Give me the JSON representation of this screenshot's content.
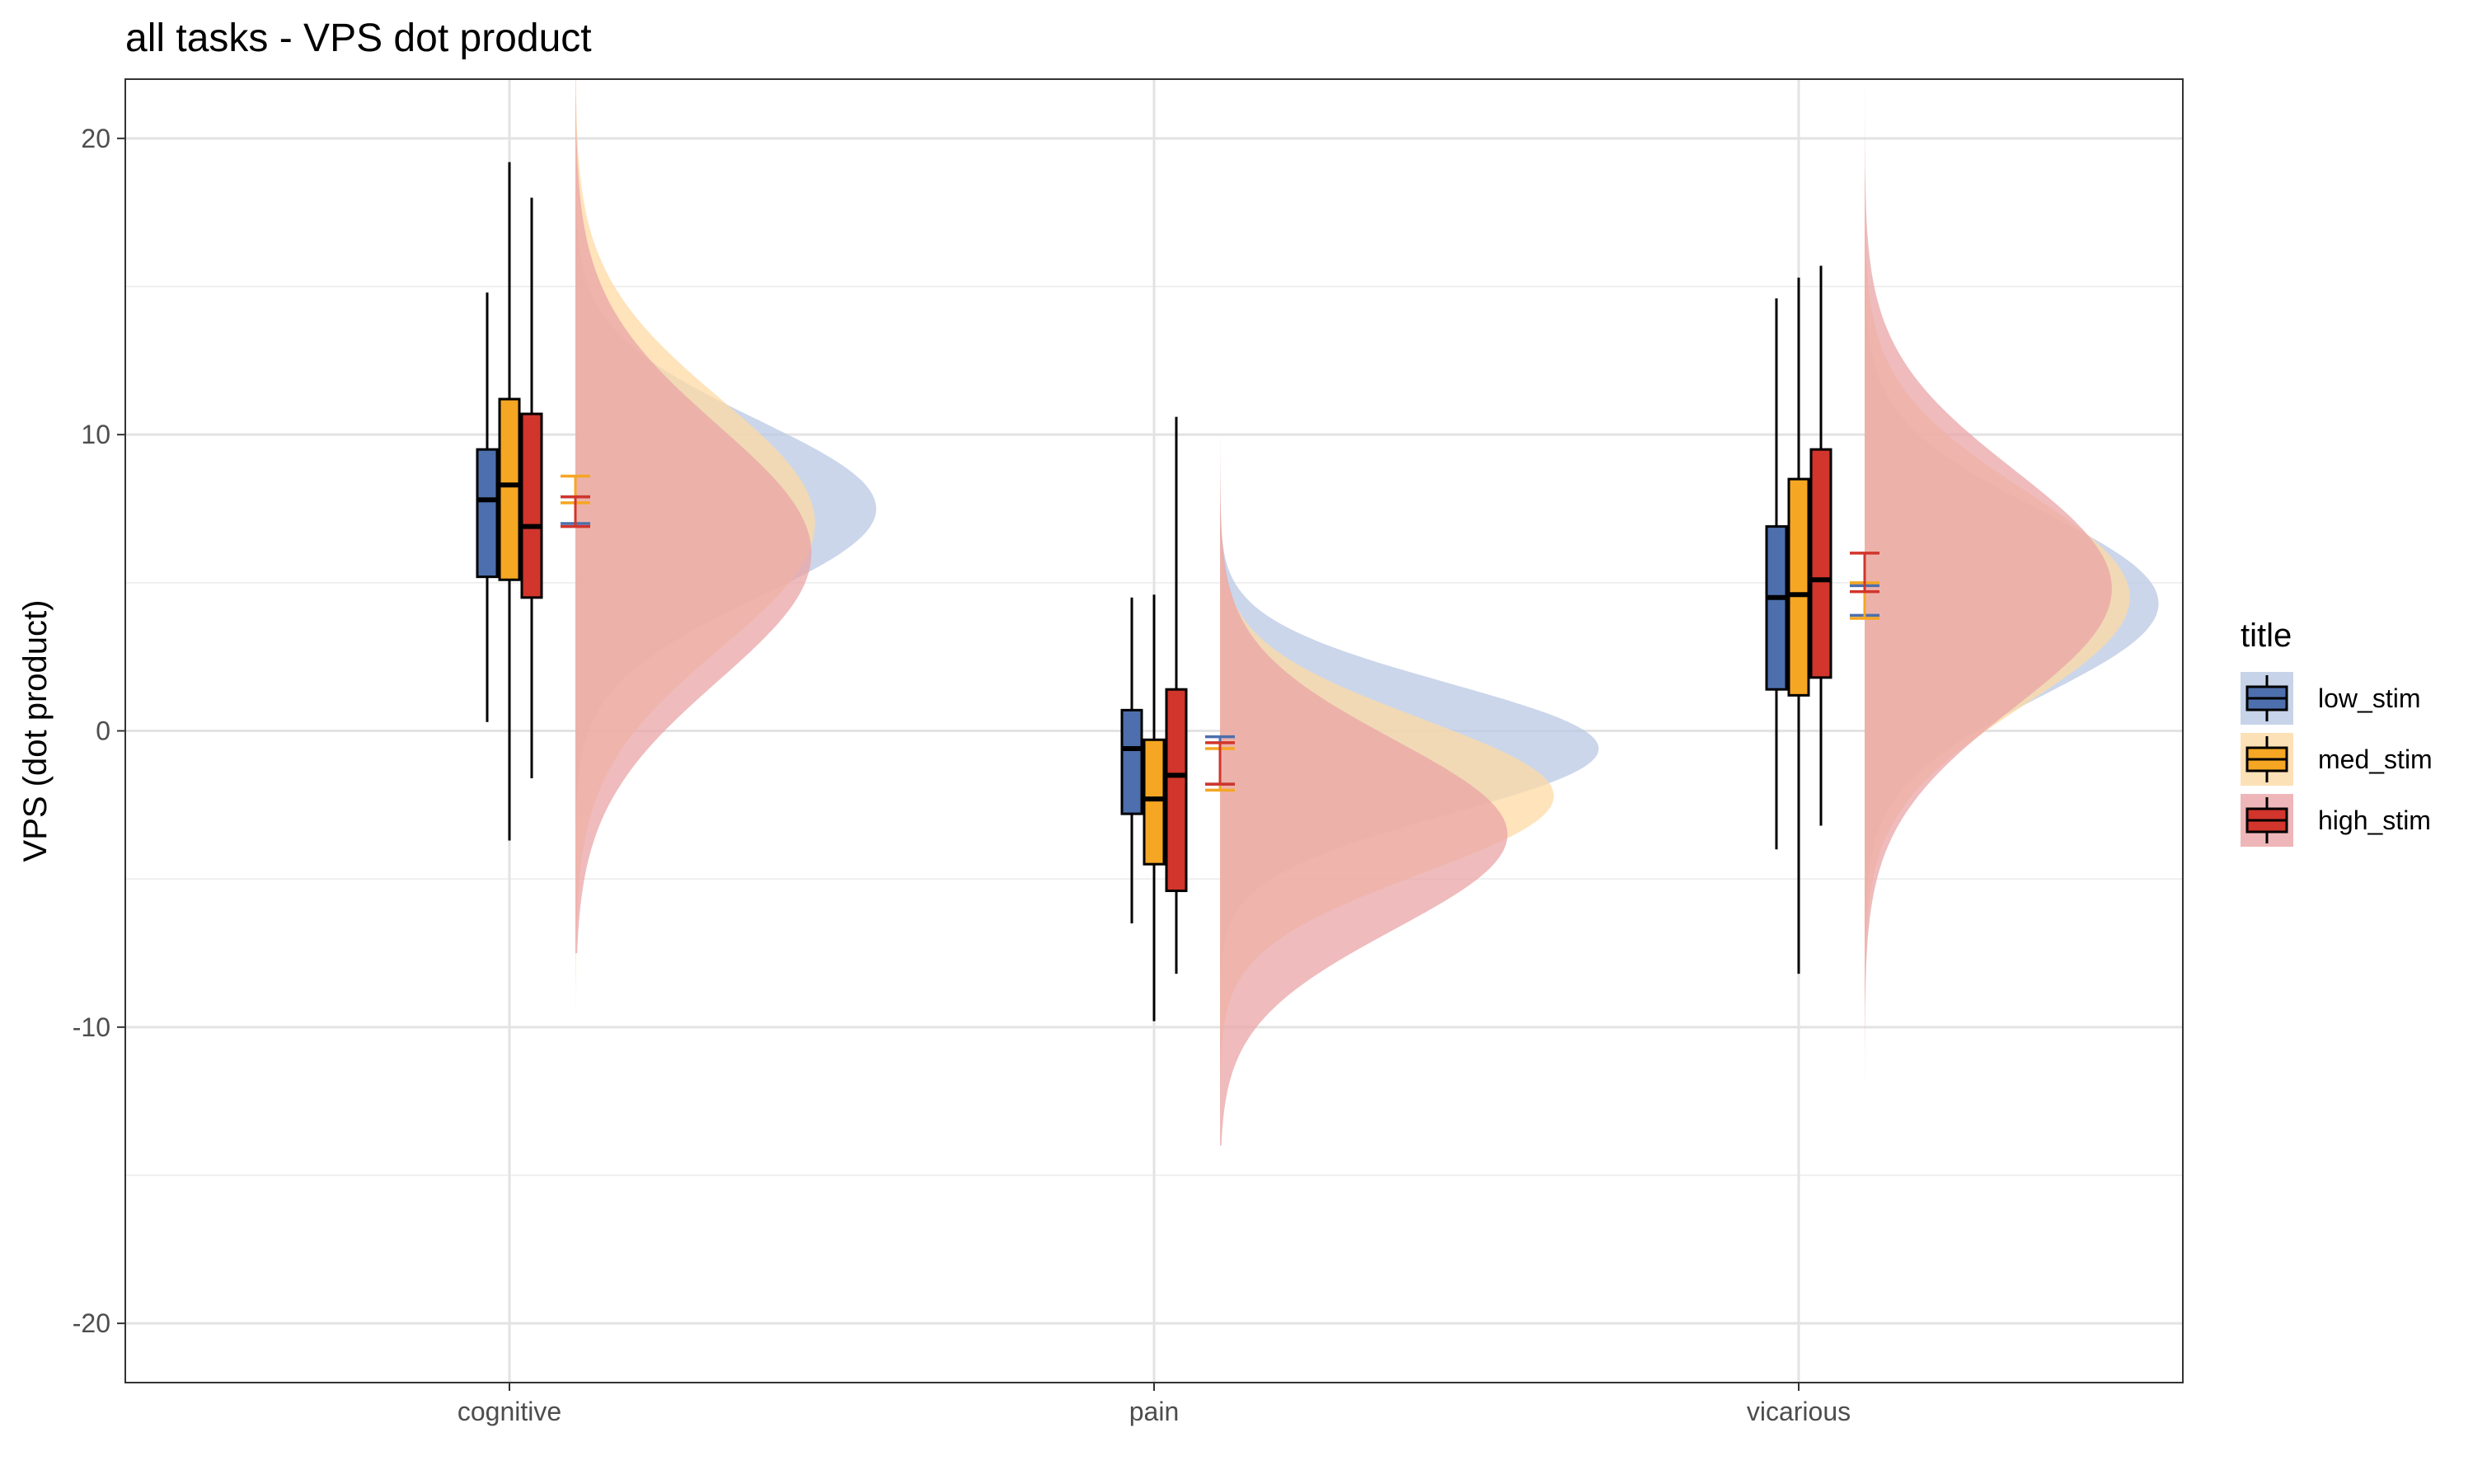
{
  "chart_data": {
    "type": "raincloud",
    "title": "all tasks  - VPS dot product",
    "xlabel": "",
    "ylabel": "VPS (dot product)",
    "ylim": [
      -22,
      22
    ],
    "y_ticks": [
      -20,
      -10,
      0,
      10,
      20
    ],
    "grid": true,
    "categories": [
      "cognitive",
      "pain",
      "vicarious"
    ],
    "legend": {
      "title": "title",
      "position": "right"
    },
    "series": [
      {
        "name": "low_stim",
        "color": "#4e6fad",
        "fill": "#b9c8e4",
        "box": [
          {
            "whisker_low": 0.3,
            "q1": 5.2,
            "median": 7.8,
            "q3": 9.5,
            "whisker_high": 14.8
          },
          {
            "whisker_low": -6.5,
            "q1": -2.8,
            "median": -0.6,
            "q3": 0.7,
            "whisker_high": 4.5
          },
          {
            "whisker_low": -4.0,
            "q1": 1.4,
            "median": 4.5,
            "q3": 6.9,
            "whisker_high": 14.6
          }
        ],
        "mean_ci": [
          {
            "low": 7.0,
            "high": 7.9
          },
          {
            "low": -1.8,
            "high": -0.2
          },
          {
            "low": 3.9,
            "high": 4.9
          }
        ],
        "density": [
          {
            "min": -5,
            "max": 20,
            "peak": 7.5,
            "sd": 3.0
          },
          {
            "min": -12,
            "max": 12,
            "peak": -0.6,
            "sd": 2.2
          },
          {
            "min": -8,
            "max": 20,
            "peak": 4.3,
            "sd": 3.1
          }
        ]
      },
      {
        "name": "med_stim",
        "color": "#f5a623",
        "fill": "#fdd9a4",
        "box": [
          {
            "whisker_low": -3.7,
            "q1": 5.1,
            "median": 8.3,
            "q3": 11.2,
            "whisker_high": 19.2
          },
          {
            "whisker_low": -9.8,
            "q1": -4.5,
            "median": -2.3,
            "q3": -0.3,
            "whisker_high": 4.6
          },
          {
            "whisker_low": -8.2,
            "q1": 1.2,
            "median": 4.6,
            "q3": 8.5,
            "whisker_high": 15.3
          }
        ],
        "mean_ci": [
          {
            "low": 7.7,
            "high": 8.6
          },
          {
            "low": -2.0,
            "high": -0.6
          },
          {
            "low": 3.8,
            "high": 5.0
          }
        ],
        "density": [
          {
            "min": -9.5,
            "max": 28,
            "peak": 7.0,
            "sd": 4.2
          },
          {
            "min": -13,
            "max": 14,
            "peak": -2.2,
            "sd": 2.6
          },
          {
            "min": -12,
            "max": 20,
            "peak": 4.5,
            "sd": 3.6
          }
        ]
      },
      {
        "name": "high_stim",
        "color": "#d1352b",
        "fill": "#eaa4a6",
        "box": [
          {
            "whisker_low": -1.6,
            "q1": 4.5,
            "median": 6.9,
            "q3": 10.7,
            "whisker_high": 18.0
          },
          {
            "whisker_low": -8.2,
            "q1": -5.4,
            "median": -1.5,
            "q3": 1.4,
            "whisker_high": 10.6
          },
          {
            "whisker_low": -3.2,
            "q1": 1.8,
            "median": 5.1,
            "q3": 9.5,
            "whisker_high": 15.7
          }
        ],
        "mean_ci": [
          {
            "low": 6.9,
            "high": 7.9
          },
          {
            "low": -1.8,
            "high": -0.4
          },
          {
            "low": 4.7,
            "high": 6.0
          }
        ],
        "density": [
          {
            "min": -7.5,
            "max": 28,
            "peak": 6.0,
            "sd": 4.3
          },
          {
            "min": -14,
            "max": 16,
            "peak": -3.5,
            "sd": 3.2
          },
          {
            "min": -21.5,
            "max": 22,
            "peak": 4.8,
            "sd": 4.0
          }
        ]
      }
    ]
  }
}
